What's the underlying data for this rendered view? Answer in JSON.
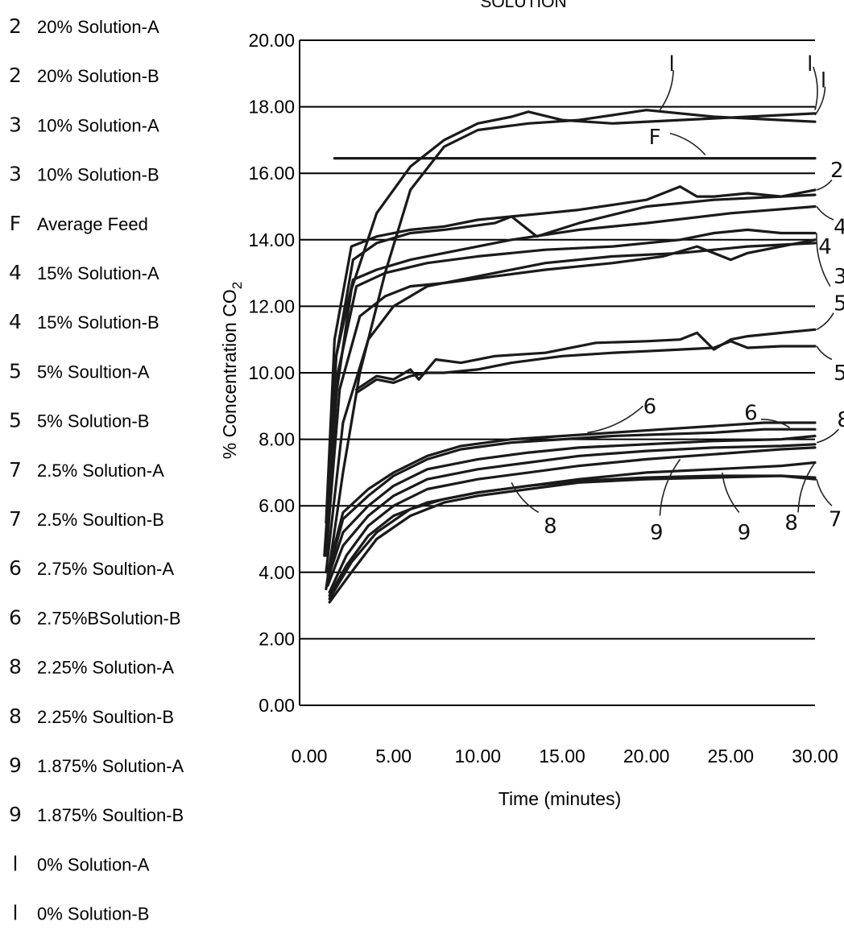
{
  "chart_data": {
    "type": "line",
    "title": "SOLUTION",
    "xlabel": "Time (minutes)",
    "ylabel": "% Concentration CO",
    "ylabel_subscript": "2",
    "xlim": [
      0,
      30
    ],
    "ylim": [
      0,
      20
    ],
    "x_ticks": [
      "0.00",
      "5.00",
      "10.00",
      "15.00",
      "20.00",
      "25.00",
      "30.00"
    ],
    "y_ticks": [
      "0.00",
      "2.00",
      "4.00",
      "6.00",
      "8.00",
      "10.00",
      "12.00",
      "14.00",
      "16.00",
      "18.00",
      "20.00"
    ],
    "grid": "horizontal",
    "legend_position": "left",
    "legend": [
      {
        "code": "2",
        "label": "20% Solution-A"
      },
      {
        "code": "2",
        "label": "20% Solution-B"
      },
      {
        "code": "3",
        "label": "10% Solution-A"
      },
      {
        "code": "3",
        "label": "10% Solution-B"
      },
      {
        "code": "F",
        "label": "Average Feed"
      },
      {
        "code": "4",
        "label": "15% Solution-A"
      },
      {
        "code": "4",
        "label": "15% Solution-B"
      },
      {
        "code": "5",
        "label": "5% Soultion-A"
      },
      {
        "code": "5",
        "label": "5% Solution-B"
      },
      {
        "code": "7",
        "label": "2.5% Solution-A"
      },
      {
        "code": "7",
        "label": "2.5% Soultion-B"
      },
      {
        "code": "6",
        "label": "2.75% Soultion-A"
      },
      {
        "code": "6",
        "label": "2.75%BSolution-B"
      },
      {
        "code": "8",
        "label": "2.25% Solution-A"
      },
      {
        "code": "8",
        "label": "2.25% Soultion-B"
      },
      {
        "code": "9",
        "label": "1.875% Solution-A"
      },
      {
        "code": "9",
        "label": "1.875% Soultion-B"
      },
      {
        "code": "l",
        "label": "0% Solution-A"
      },
      {
        "code": "l",
        "label": "0% Solution-B"
      }
    ],
    "series": [
      {
        "code": "1",
        "x": [
          0.9,
          1.5,
          2.5,
          4,
          6,
          8,
          10,
          12,
          13,
          15,
          18,
          22,
          26,
          30
        ],
        "y": [
          4.5,
          9,
          12.5,
          14.8,
          16.2,
          17.0,
          17.5,
          17.7,
          17.85,
          17.6,
          17.5,
          17.6,
          17.7,
          17.8
        ]
      },
      {
        "code": "1",
        "x": [
          1.0,
          2,
          3,
          4.5,
          6,
          8,
          10,
          13,
          16,
          20,
          24,
          28,
          30
        ],
        "y": [
          3.5,
          7,
          10,
          13,
          15.5,
          16.8,
          17.3,
          17.5,
          17.6,
          17.9,
          17.7,
          17.6,
          17.55
        ]
      },
      {
        "code": "F",
        "x": [
          1.5,
          30
        ],
        "y": [
          16.45,
          16.45
        ]
      },
      {
        "code": "2",
        "x": [
          1.0,
          1.5,
          2.5,
          4,
          6,
          8,
          10,
          12,
          14,
          16,
          20,
          22,
          23,
          24,
          26,
          28,
          30
        ],
        "y": [
          5.5,
          11,
          13.8,
          14.1,
          14.3,
          14.4,
          14.6,
          14.7,
          14.8,
          14.9,
          15.2,
          15.6,
          15.3,
          15.3,
          15.4,
          15.3,
          15.35
        ]
      },
      {
        "code": "2",
        "x": [
          1.0,
          1.6,
          2.6,
          4,
          6,
          8,
          11,
          12,
          13.5,
          16,
          20,
          24,
          28,
          30
        ],
        "y": [
          5.0,
          10.5,
          13.4,
          13.9,
          14.2,
          14.3,
          14.5,
          14.7,
          14.1,
          14.5,
          15.0,
          15.2,
          15.3,
          15.5
        ]
      },
      {
        "code": "4",
        "x": [
          1.0,
          1.6,
          2.6,
          4,
          6,
          9,
          12,
          16,
          20,
          25,
          30
        ],
        "y": [
          5.0,
          10.5,
          12.8,
          13.1,
          13.4,
          13.7,
          14.0,
          14.3,
          14.5,
          14.8,
          15.0
        ]
      },
      {
        "code": "4",
        "x": [
          1.0,
          1.7,
          2.8,
          4.5,
          7,
          10,
          14,
          18,
          22,
          24,
          26,
          28,
          30
        ],
        "y": [
          4.8,
          10.0,
          12.6,
          13.0,
          13.3,
          13.5,
          13.7,
          13.8,
          14.0,
          14.2,
          14.3,
          14.2,
          14.2
        ]
      },
      {
        "code": "3",
        "x": [
          1.0,
          1.8,
          3,
          4.5,
          6,
          8,
          11,
          14,
          18,
          21,
          23,
          25,
          26,
          28,
          30
        ],
        "y": [
          4.5,
          9.5,
          11.7,
          12.3,
          12.6,
          12.7,
          12.9,
          13.1,
          13.3,
          13.5,
          13.8,
          13.4,
          13.6,
          13.8,
          14.0
        ]
      },
      {
        "code": "3",
        "x": [
          1.0,
          2,
          3.5,
          5,
          7,
          10,
          14,
          18,
          22,
          26,
          30
        ],
        "y": [
          4.0,
          8.5,
          11.0,
          12.0,
          12.6,
          12.9,
          13.3,
          13.5,
          13.6,
          13.8,
          13.9
        ]
      },
      {
        "code": "5",
        "x": [
          2.8,
          4,
          5,
          6,
          6.5,
          7.5,
          9,
          11,
          14,
          17,
          20,
          22,
          23,
          24,
          25,
          26,
          28,
          30
        ],
        "y": [
          9.5,
          9.9,
          9.8,
          10.1,
          9.8,
          10.4,
          10.3,
          10.5,
          10.6,
          10.9,
          10.95,
          11.0,
          11.2,
          10.7,
          11.0,
          11.1,
          11.2,
          11.3
        ]
      },
      {
        "code": "5",
        "x": [
          2.8,
          4,
          5,
          6,
          7,
          8,
          10,
          12,
          15,
          18,
          20,
          22,
          24,
          25,
          26,
          28,
          30
        ],
        "y": [
          9.4,
          9.8,
          9.7,
          9.9,
          10.0,
          10.0,
          10.1,
          10.3,
          10.5,
          10.6,
          10.65,
          10.7,
          10.75,
          10.95,
          10.75,
          10.8,
          10.8
        ]
      },
      {
        "code": "6",
        "x": [
          1.1,
          2,
          3.5,
          5,
          7,
          9,
          12,
          15,
          18,
          21,
          24,
          27,
          30
        ],
        "y": [
          4.0,
          5.8,
          6.5,
          7.0,
          7.5,
          7.8,
          8.0,
          8.1,
          8.2,
          8.3,
          8.4,
          8.5,
          8.5
        ]
      },
      {
        "code": "6",
        "x": [
          1.1,
          2,
          3.5,
          5,
          7,
          9,
          12,
          15,
          18,
          21,
          24,
          27,
          30
        ],
        "y": [
          3.9,
          5.6,
          6.3,
          6.9,
          7.4,
          7.7,
          7.9,
          8.0,
          8.1,
          8.15,
          8.2,
          8.3,
          8.3
        ]
      },
      {
        "code": "8",
        "x": [
          1.1,
          2,
          3.5,
          5,
          7,
          10,
          13,
          16,
          20,
          24,
          28,
          30
        ],
        "y": [
          3.8,
          5.2,
          6.0,
          6.6,
          7.1,
          7.4,
          7.6,
          7.75,
          7.85,
          7.95,
          8.0,
          8.1
        ]
      },
      {
        "code": "8",
        "x": [
          1.1,
          2,
          3.5,
          5,
          7,
          10,
          13,
          16,
          20,
          24,
          28,
          30
        ],
        "y": [
          3.6,
          4.8,
          5.7,
          6.3,
          6.8,
          7.1,
          7.3,
          7.5,
          7.65,
          7.75,
          7.8,
          7.85
        ]
      },
      {
        "code": "9",
        "x": [
          1.2,
          2.2,
          3.5,
          5,
          7,
          10,
          13,
          16,
          20,
          24,
          28,
          30
        ],
        "y": [
          3.4,
          4.5,
          5.4,
          6.0,
          6.5,
          6.8,
          7.0,
          7.2,
          7.4,
          7.55,
          7.7,
          7.75
        ]
      },
      {
        "code": "9",
        "x": [
          1.2,
          2.2,
          3.5,
          5,
          7,
          10,
          13,
          16,
          20,
          24,
          28,
          30
        ],
        "y": [
          3.3,
          4.2,
          5.1,
          5.7,
          6.1,
          6.4,
          6.6,
          6.8,
          7.0,
          7.1,
          7.2,
          7.3
        ]
      },
      {
        "code": "7",
        "x": [
          1.2,
          2.5,
          4,
          6,
          8,
          10,
          13,
          16,
          20,
          24,
          28,
          30
        ],
        "y": [
          3.2,
          4.3,
          5.2,
          5.9,
          6.2,
          6.4,
          6.6,
          6.75,
          6.85,
          6.9,
          6.9,
          6.85
        ]
      },
      {
        "code": "7",
        "x": [
          1.2,
          2.5,
          4,
          6,
          8,
          10,
          13,
          16,
          20,
          24,
          28,
          30
        ],
        "y": [
          3.1,
          4.0,
          5.0,
          5.7,
          6.1,
          6.3,
          6.5,
          6.7,
          6.8,
          6.85,
          6.9,
          6.8
        ]
      }
    ],
    "curve_labels": [
      {
        "text": "l",
        "x": 21.5,
        "y": 19.3
      },
      {
        "text": "l",
        "x": 29.7,
        "y": 19.3
      },
      {
        "text": "l",
        "x": 30.5,
        "y": 18.8
      },
      {
        "text": "F",
        "x": 20.5,
        "y": 17.1
      },
      {
        "text": "2",
        "x": 31.3,
        "y": 16.1
      },
      {
        "text": "4",
        "x": 31.5,
        "y": 14.4
      },
      {
        "text": "4",
        "x": 30.6,
        "y": 13.8
      },
      {
        "text": "3",
        "x": 31.5,
        "y": 12.9
      },
      {
        "text": "5",
        "x": 31.5,
        "y": 12.1
      },
      {
        "text": "5",
        "x": 31.5,
        "y": 10.0
      },
      {
        "text": "6",
        "x": 20.2,
        "y": 9.0
      },
      {
        "text": "6",
        "x": 26.2,
        "y": 8.8
      },
      {
        "text": "8",
        "x": 31.7,
        "y": 8.6
      },
      {
        "text": "8",
        "x": 14.3,
        "y": 5.4
      },
      {
        "text": "9",
        "x": 20.6,
        "y": 5.2
      },
      {
        "text": "9",
        "x": 25.8,
        "y": 5.2
      },
      {
        "text": "8",
        "x": 28.6,
        "y": 5.5
      },
      {
        "text": "7",
        "x": 31.2,
        "y": 5.6
      }
    ],
    "leaders": [
      {
        "from": [
          21.6,
          19.1
        ],
        "to": [
          20.8,
          17.9
        ]
      },
      {
        "from": [
          29.9,
          19.2
        ],
        "to": [
          30.0,
          17.9
        ]
      },
      {
        "from": [
          30.6,
          18.6
        ],
        "to": [
          30.0,
          17.75
        ]
      },
      {
        "from": [
          21.4,
          17.2
        ],
        "to": [
          23.5,
          16.55
        ]
      },
      {
        "from": [
          31.0,
          15.8
        ],
        "to": [
          30.1,
          15.5
        ]
      },
      {
        "from": [
          31.1,
          14.6
        ],
        "to": [
          30.1,
          15.0
        ]
      },
      {
        "from": [
          30.9,
          12.6
        ],
        "to": [
          30.1,
          14.2
        ]
      },
      {
        "from": [
          31.1,
          11.8
        ],
        "to": [
          30.1,
          11.3
        ]
      },
      {
        "from": [
          31.0,
          10.4
        ],
        "to": [
          30.1,
          10.8
        ]
      },
      {
        "from": [
          19.8,
          9.0
        ],
        "to": [
          16.5,
          8.2
        ]
      },
      {
        "from": [
          26.8,
          8.6
        ],
        "to": [
          28.5,
          8.35
        ]
      },
      {
        "from": [
          31.4,
          8.3
        ],
        "to": [
          30.1,
          7.9
        ]
      },
      {
        "from": [
          13.6,
          5.8
        ],
        "to": [
          12.0,
          6.7
        ]
      },
      {
        "from": [
          20.8,
          5.7
        ],
        "to": [
          22.0,
          7.4
        ]
      },
      {
        "from": [
          25.5,
          5.8
        ],
        "to": [
          24.5,
          7.0
        ]
      },
      {
        "from": [
          29.0,
          5.8
        ],
        "to": [
          30.0,
          7.3
        ]
      },
      {
        "from": [
          31.0,
          6.0
        ],
        "to": [
          30.1,
          6.8
        ]
      }
    ]
  }
}
